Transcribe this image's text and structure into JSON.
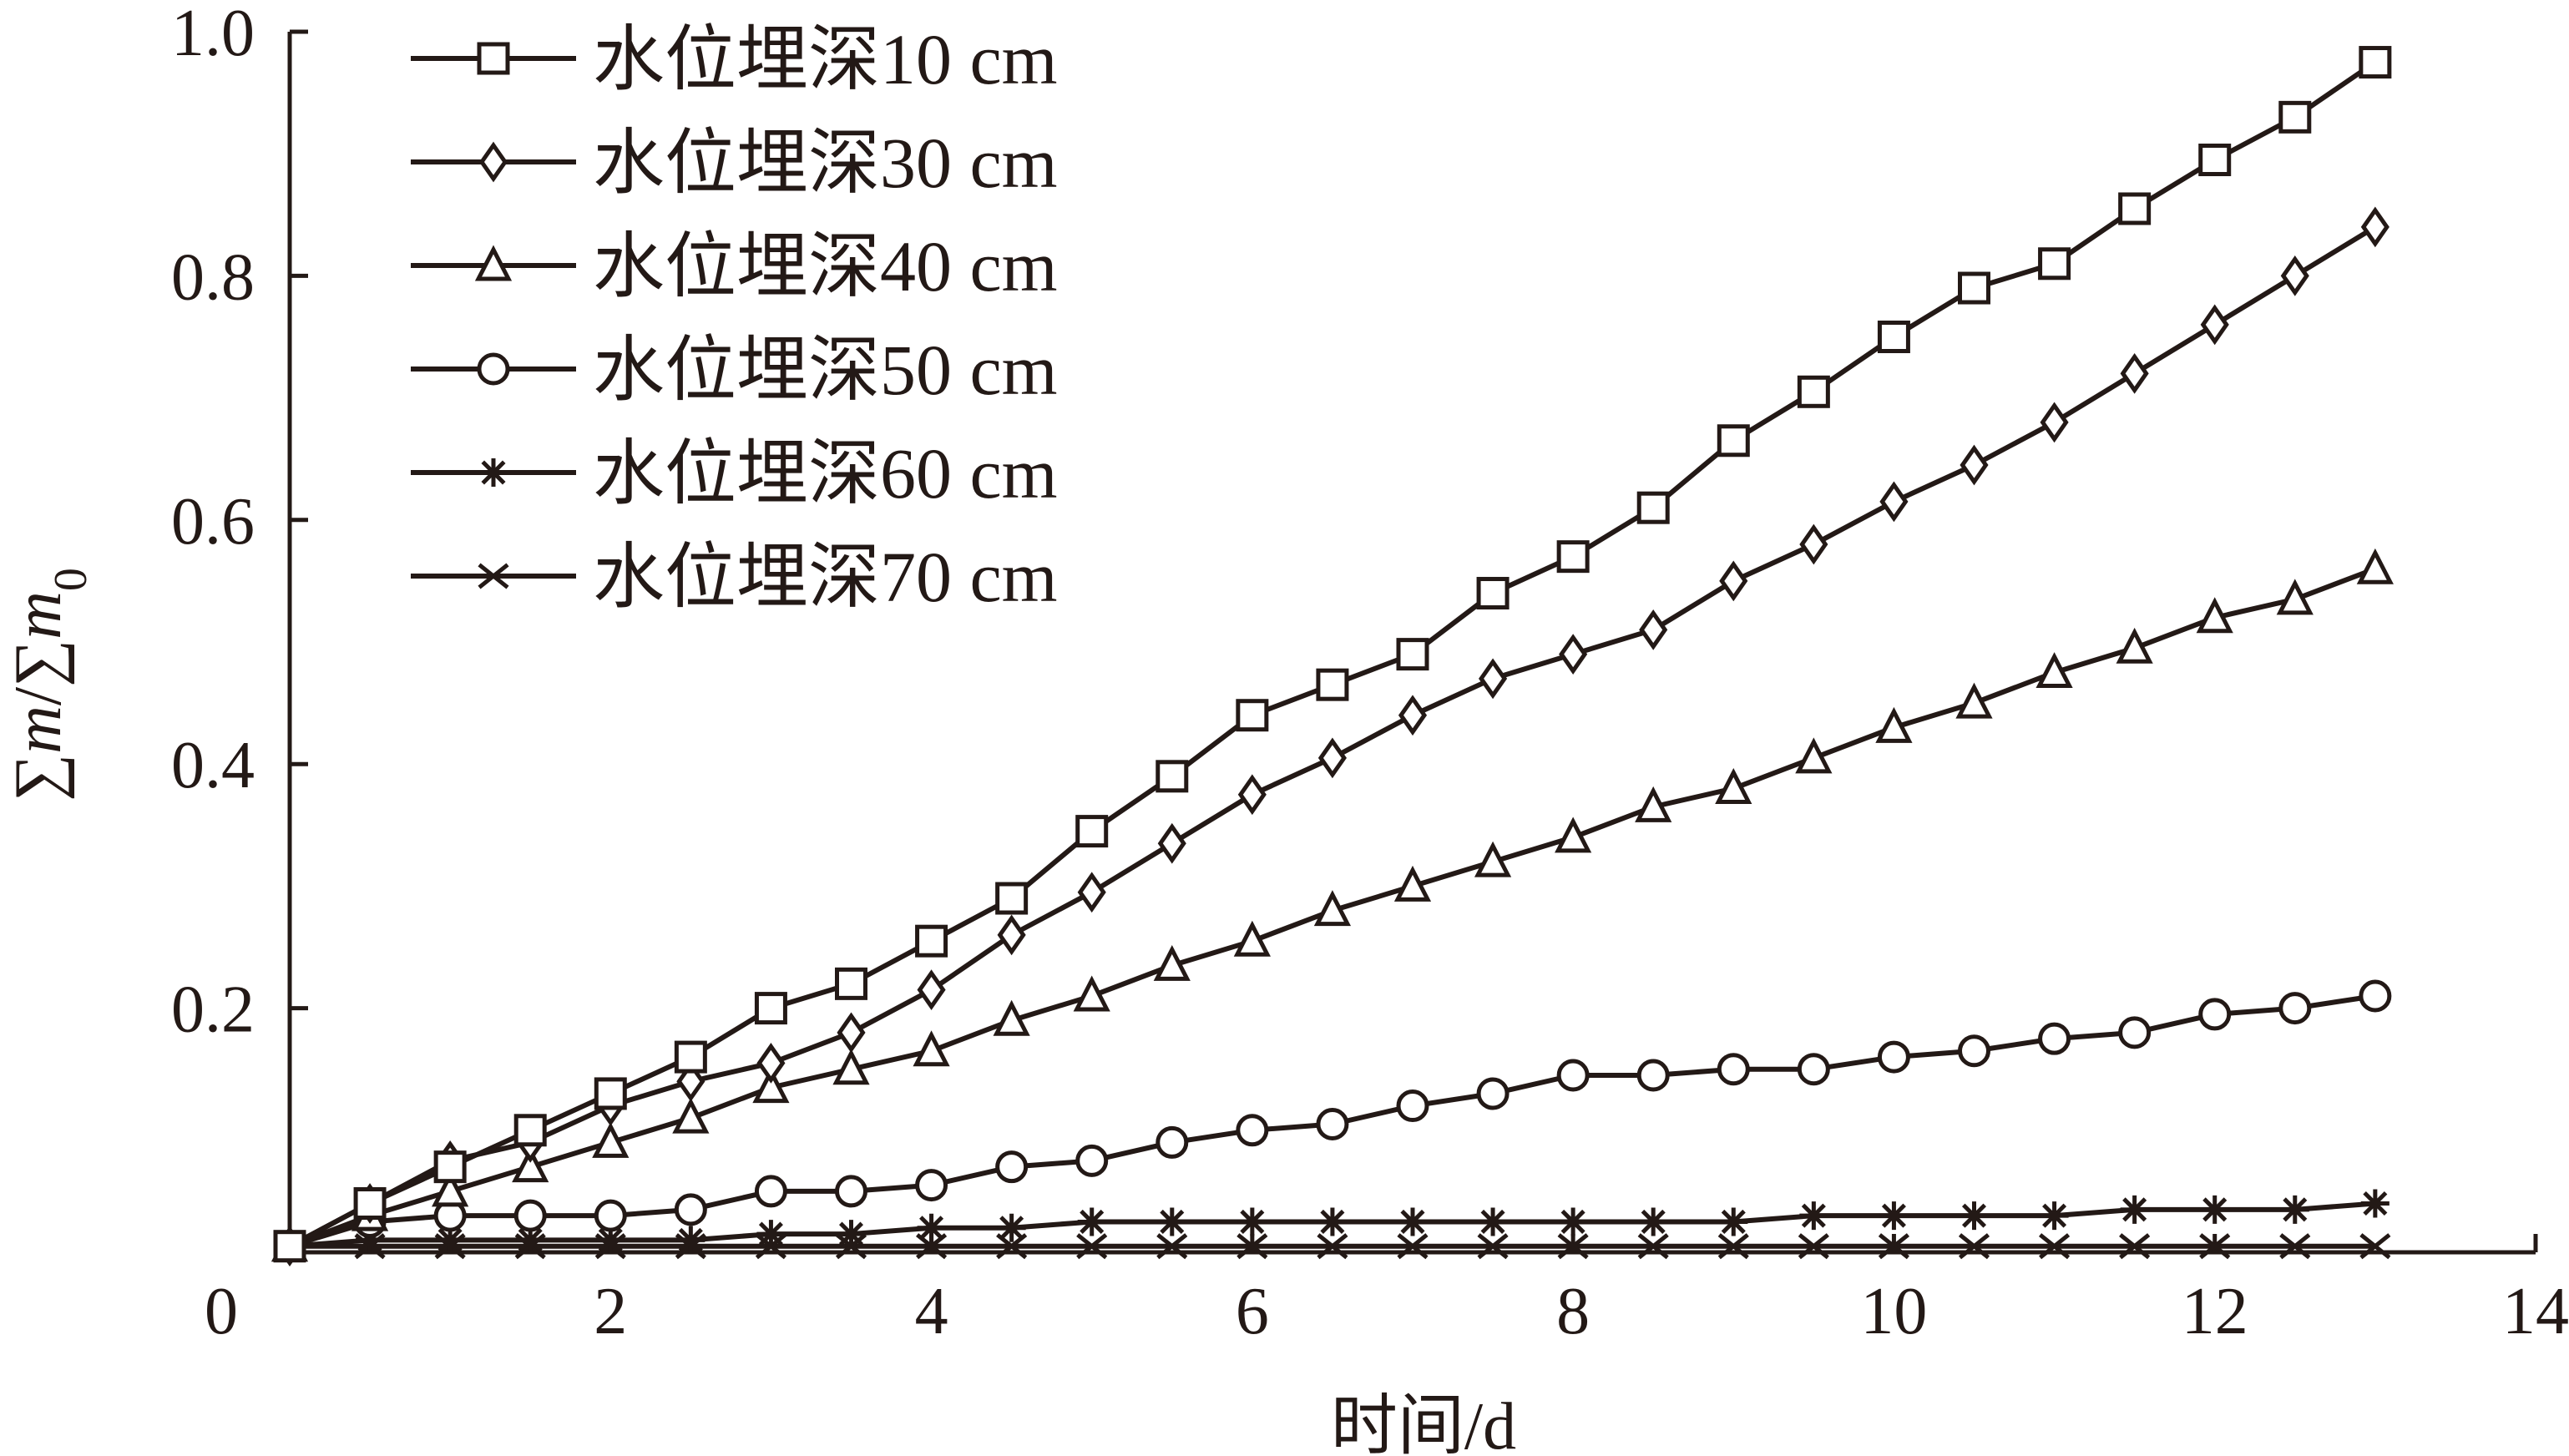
{
  "chart_data": {
    "type": "line",
    "xlabel": "时间/d",
    "ylabel": "∑m/∑m0",
    "xlim": [
      0,
      14
    ],
    "ylim": [
      0,
      1.0
    ],
    "x_ticks": [
      "2",
      "4",
      "6",
      "8",
      "10",
      "12",
      "14"
    ],
    "y_ticks": [
      "0.2",
      "0.4",
      "0.6",
      "0.8",
      "1.0"
    ],
    "origin_label": "0",
    "grid": false,
    "legend_position": "top-left",
    "x": [
      0,
      0.5,
      1,
      1.5,
      2,
      2.5,
      3,
      3.5,
      4,
      4.5,
      5,
      5.5,
      6,
      6.5,
      7,
      7.5,
      8,
      8.5,
      9,
      9.5,
      10,
      10.5,
      11,
      11.5,
      12,
      12.5,
      13
    ],
    "series": [
      {
        "name": "水位埋深10 cm",
        "marker": "square",
        "values": [
          0.005,
          0.04,
          0.07,
          0.1,
          0.13,
          0.16,
          0.2,
          0.22,
          0.255,
          0.29,
          0.345,
          0.39,
          0.44,
          0.465,
          0.49,
          0.54,
          0.57,
          0.61,
          0.665,
          0.705,
          0.75,
          0.79,
          0.81,
          0.855,
          0.895,
          0.93,
          0.975
        ]
      },
      {
        "name": "水位埋深30 cm",
        "marker": "diamond",
        "values": [
          0.005,
          0.04,
          0.075,
          0.09,
          0.12,
          0.14,
          0.155,
          0.18,
          0.215,
          0.26,
          0.295,
          0.335,
          0.375,
          0.405,
          0.44,
          0.47,
          0.49,
          0.51,
          0.55,
          0.58,
          0.615,
          0.645,
          0.68,
          0.72,
          0.76,
          0.8,
          0.84
        ]
      },
      {
        "name": "水位埋深40 cm",
        "marker": "triangle",
        "values": [
          0.005,
          0.03,
          0.05,
          0.07,
          0.09,
          0.11,
          0.135,
          0.15,
          0.165,
          0.19,
          0.21,
          0.235,
          0.255,
          0.28,
          0.3,
          0.32,
          0.34,
          0.365,
          0.38,
          0.405,
          0.43,
          0.45,
          0.475,
          0.495,
          0.52,
          0.535,
          0.56
        ]
      },
      {
        "name": "水位埋深50 cm",
        "marker": "circle",
        "values": [
          0.005,
          0.025,
          0.03,
          0.03,
          0.03,
          0.035,
          0.05,
          0.05,
          0.055,
          0.07,
          0.075,
          0.09,
          0.1,
          0.105,
          0.12,
          0.13,
          0.145,
          0.145,
          0.15,
          0.15,
          0.16,
          0.165,
          0.175,
          0.18,
          0.195,
          0.2,
          0.21
        ]
      },
      {
        "name": "水位埋深60 cm",
        "marker": "asterisk",
        "values": [
          0.005,
          0.01,
          0.01,
          0.01,
          0.01,
          0.01,
          0.015,
          0.015,
          0.02,
          0.02,
          0.025,
          0.025,
          0.025,
          0.025,
          0.025,
          0.025,
          0.025,
          0.025,
          0.025,
          0.03,
          0.03,
          0.03,
          0.03,
          0.035,
          0.035,
          0.035,
          0.04
        ]
      },
      {
        "name": "水位埋深70 cm",
        "marker": "x",
        "values": [
          0.005,
          0.005,
          0.005,
          0.005,
          0.005,
          0.005,
          0.005,
          0.005,
          0.005,
          0.005,
          0.005,
          0.005,
          0.005,
          0.005,
          0.005,
          0.005,
          0.005,
          0.005,
          0.005,
          0.005,
          0.005,
          0.005,
          0.005,
          0.005,
          0.005,
          0.005,
          0.005
        ]
      }
    ]
  },
  "colors": {
    "ink": "#231916",
    "background": "#ffffff"
  }
}
